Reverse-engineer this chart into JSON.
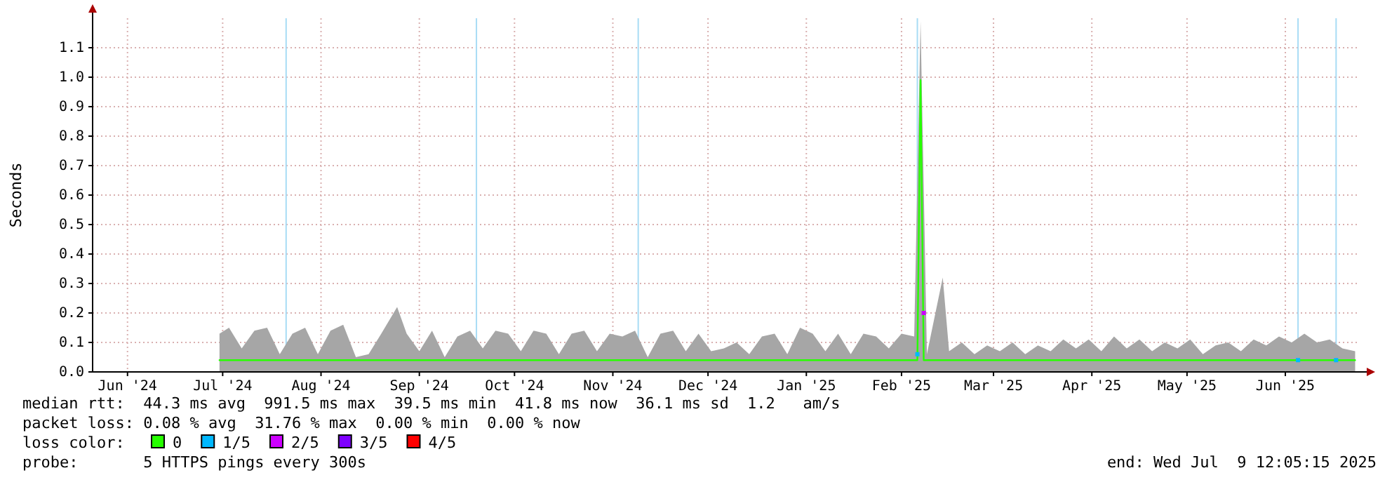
{
  "chart_data": {
    "type": "line",
    "ylabel": "Seconds",
    "xlim": [
      "2024-06-05",
      "2025-07-09"
    ],
    "xticks": [
      {
        "value": "2024-06-16",
        "label": "Jun '24"
      },
      {
        "value": "2024-07-16",
        "label": "Jul '24"
      },
      {
        "value": "2024-08-16",
        "label": "Aug '24"
      },
      {
        "value": "2024-09-16",
        "label": "Sep '24"
      },
      {
        "value": "2024-10-16",
        "label": "Oct '24"
      },
      {
        "value": "2024-11-16",
        "label": "Nov '24"
      },
      {
        "value": "2024-12-16",
        "label": "Dec '24"
      },
      {
        "value": "2025-01-16",
        "label": "Jan '25"
      },
      {
        "value": "2025-02-15",
        "label": "Feb '25"
      },
      {
        "value": "2025-03-16",
        "label": "Mar '25"
      },
      {
        "value": "2025-04-16",
        "label": "Apr '25"
      },
      {
        "value": "2025-05-16",
        "label": "May '25"
      },
      {
        "value": "2025-06-16",
        "label": "Jun '25"
      }
    ],
    "ylim": [
      0,
      1.2
    ],
    "yticks": [
      {
        "value": 0,
        "label": "0.0"
      },
      {
        "value": 0.1,
        "label": "0.1"
      },
      {
        "value": 0.2,
        "label": "0.2"
      },
      {
        "value": 0.3,
        "label": "0.3"
      },
      {
        "value": 0.4,
        "label": "0.4"
      },
      {
        "value": 0.5,
        "label": "0.5"
      },
      {
        "value": 0.6,
        "label": "0.6"
      },
      {
        "value": 0.7,
        "label": "0.7"
      },
      {
        "value": 0.8,
        "label": "0.8"
      },
      {
        "value": 0.9,
        "label": "0.9"
      },
      {
        "value": 1.0,
        "label": "1.0"
      },
      {
        "value": 1.1,
        "label": "1.1"
      }
    ],
    "grid": true,
    "legend": "bottom",
    "series": [
      {
        "type": "area",
        "color": "#a6a6a6",
        "x": [
          "2024-07-15",
          "2024-07-18",
          "2024-07-22",
          "2024-07-26",
          "2024-07-30",
          "2024-08-03",
          "2024-08-07",
          "2024-08-11",
          "2024-08-15",
          "2024-08-19",
          "2024-08-23",
          "2024-08-27",
          "2024-08-31",
          "2024-09-04",
          "2024-09-09",
          "2024-09-12",
          "2024-09-16",
          "2024-09-20",
          "2024-09-24",
          "2024-09-28",
          "2024-10-02",
          "2024-10-06",
          "2024-10-10",
          "2024-10-14",
          "2024-10-18",
          "2024-10-22",
          "2024-10-26",
          "2024-10-30",
          "2024-11-03",
          "2024-11-07",
          "2024-11-11",
          "2024-11-15",
          "2024-11-19",
          "2024-11-23",
          "2024-11-27",
          "2024-12-01",
          "2024-12-05",
          "2024-12-09",
          "2024-12-13",
          "2024-12-17",
          "2024-12-21",
          "2024-12-25",
          "2024-12-29",
          "2025-01-02",
          "2025-01-06",
          "2025-01-10",
          "2025-01-14",
          "2025-01-18",
          "2025-01-22",
          "2025-01-26",
          "2025-01-30",
          "2025-02-03",
          "2025-02-07",
          "2025-02-11",
          "2025-02-15",
          "2025-02-19",
          "2025-02-21",
          "2025-02-23",
          "2025-02-28",
          "2025-03-02",
          "2025-03-06",
          "2025-03-10",
          "2025-03-14",
          "2025-03-18",
          "2025-03-22",
          "2025-03-26",
          "2025-03-30",
          "2025-04-03",
          "2025-04-07",
          "2025-04-11",
          "2025-04-15",
          "2025-04-19",
          "2025-04-23",
          "2025-04-27",
          "2025-05-01",
          "2025-05-05",
          "2025-05-09",
          "2025-05-13",
          "2025-05-17",
          "2025-05-21",
          "2025-05-25",
          "2025-05-29",
          "2025-06-02",
          "2025-06-06",
          "2025-06-10",
          "2025-06-14",
          "2025-06-18",
          "2025-06-22",
          "2025-06-26",
          "2025-06-30",
          "2025-07-04",
          "2025-07-08"
        ],
        "values": [
          0.13,
          0.15,
          0.08,
          0.14,
          0.15,
          0.06,
          0.13,
          0.15,
          0.06,
          0.14,
          0.16,
          0.05,
          0.06,
          0.13,
          0.22,
          0.13,
          0.07,
          0.14,
          0.05,
          0.12,
          0.14,
          0.08,
          0.14,
          0.13,
          0.07,
          0.14,
          0.13,
          0.06,
          0.13,
          0.14,
          0.07,
          0.13,
          0.12,
          0.14,
          0.05,
          0.13,
          0.14,
          0.07,
          0.13,
          0.07,
          0.08,
          0.1,
          0.06,
          0.12,
          0.13,
          0.06,
          0.15,
          0.13,
          0.07,
          0.13,
          0.06,
          0.13,
          0.12,
          0.08,
          0.13,
          0.12,
          1.19,
          0.06,
          0.32,
          0.07,
          0.1,
          0.06,
          0.09,
          0.07,
          0.1,
          0.06,
          0.09,
          0.07,
          0.11,
          0.08,
          0.11,
          0.07,
          0.12,
          0.08,
          0.11,
          0.07,
          0.1,
          0.08,
          0.11,
          0.06,
          0.09,
          0.1,
          0.07,
          0.11,
          0.09,
          0.12,
          0.1,
          0.13,
          0.1,
          0.11,
          0.08,
          0.07
        ]
      },
      {
        "name": "0",
        "color": "#26ff00",
        "x": [
          "2024-07-15",
          "2024-08-15",
          "2024-09-15",
          "2024-10-15",
          "2024-11-15",
          "2024-12-15",
          "2025-01-15",
          "2025-02-15",
          "2025-02-20",
          "2025-02-21",
          "2025-02-22",
          "2025-03-15",
          "2025-04-15",
          "2025-05-15",
          "2025-06-15",
          "2025-07-08"
        ],
        "values": [
          0.04,
          0.04,
          0.04,
          0.04,
          0.04,
          0.04,
          0.04,
          0.04,
          0.04,
          0.99,
          0.04,
          0.04,
          0.04,
          0.04,
          0.04,
          0.04
        ]
      },
      {
        "type": "scatter",
        "name": "1/5",
        "color": "#00b8ff",
        "x": [
          "2025-02-20",
          "2025-06-20",
          "2025-07-02"
        ],
        "values": [
          0.06,
          0.04,
          0.04
        ]
      },
      {
        "type": "scatter",
        "name": "2/5",
        "color": "#cc00ff",
        "x": [
          "2025-02-22"
        ],
        "values": [
          0.2
        ]
      },
      {
        "type": "scatter",
        "name": "3/5",
        "color": "#7e00ff"
      },
      {
        "type": "scatter",
        "name": "4/5",
        "color": "#ff0000"
      }
    ],
    "ref_lines": [
      {
        "axis": "x",
        "value": "2024-08-05",
        "label": null,
        "color": "#a8dcf5"
      },
      {
        "axis": "x",
        "value": "2024-10-04",
        "label": null,
        "color": "#a8dcf5"
      },
      {
        "axis": "x",
        "value": "2024-11-24",
        "label": null,
        "color": "#a8dcf5"
      },
      {
        "axis": "x",
        "value": "2025-02-20",
        "label": null,
        "color": "#a8dcf5"
      },
      {
        "axis": "x",
        "value": "2025-06-20",
        "label": null,
        "color": "#a8dcf5"
      },
      {
        "axis": "x",
        "value": "2025-07-02",
        "label": null,
        "color": "#a8dcf5"
      }
    ],
    "annotations": [
      "median rtt:  44.3 ms avg  991.5 ms max  39.5 ms min  41.8 ms now  36.1 ms sd  1.2   am/s",
      "packet loss: 0.08 % avg  31.76 % max  0.00 % min  0.00 % now",
      "loss color:",
      "probe:       5 HTTPS pings every 300s",
      "end: Wed Jul  9 12:05:15 2025"
    ]
  }
}
